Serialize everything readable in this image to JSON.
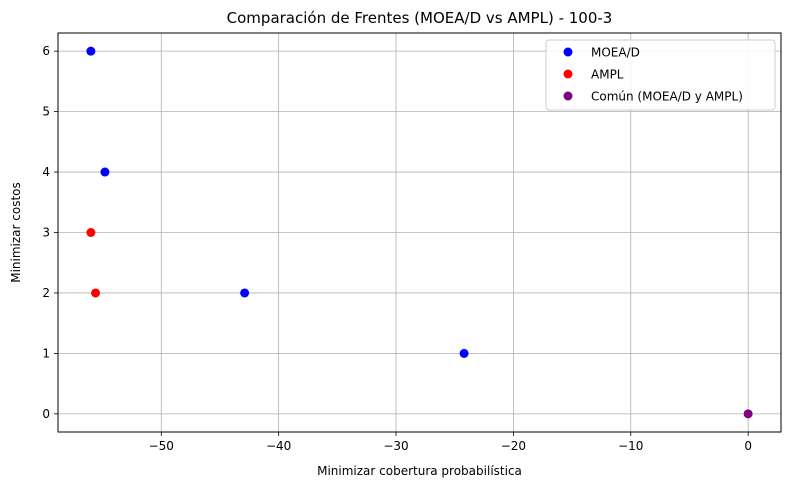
{
  "chart_data": {
    "type": "scatter",
    "title": "Comparación de Frentes (MOEA/D vs AMPL) - 100-3",
    "xlabel": "Minimizar cobertura probabilística",
    "ylabel": "Minimizar costos",
    "xlim": [
      -58.8,
      2.8
    ],
    "ylim": [
      -0.3,
      6.3
    ],
    "xticks": [
      -50,
      -40,
      -30,
      -20,
      -10,
      0
    ],
    "xtick_labels": [
      "−50",
      "−40",
      "−30",
      "−20",
      "−10",
      "0"
    ],
    "yticks": [
      0,
      1,
      2,
      3,
      4,
      5,
      6
    ],
    "ytick_labels": [
      "0",
      "1",
      "2",
      "3",
      "4",
      "5",
      "6"
    ],
    "grid": true,
    "legend_position": "top-right",
    "series": [
      {
        "name": "MOEA/D",
        "color": "#0000ff",
        "points": [
          [
            -56,
            6
          ],
          [
            -54.8,
            4
          ],
          [
            -42.9,
            2
          ],
          [
            -24.2,
            1
          ]
        ]
      },
      {
        "name": "AMPL",
        "color": "#ff0000",
        "points": [
          [
            -56,
            3
          ],
          [
            -55.6,
            2
          ]
        ]
      },
      {
        "name": "Común (MOEA/D y AMPL)",
        "color": "#800080",
        "points": [
          [
            0,
            0
          ]
        ]
      }
    ]
  }
}
